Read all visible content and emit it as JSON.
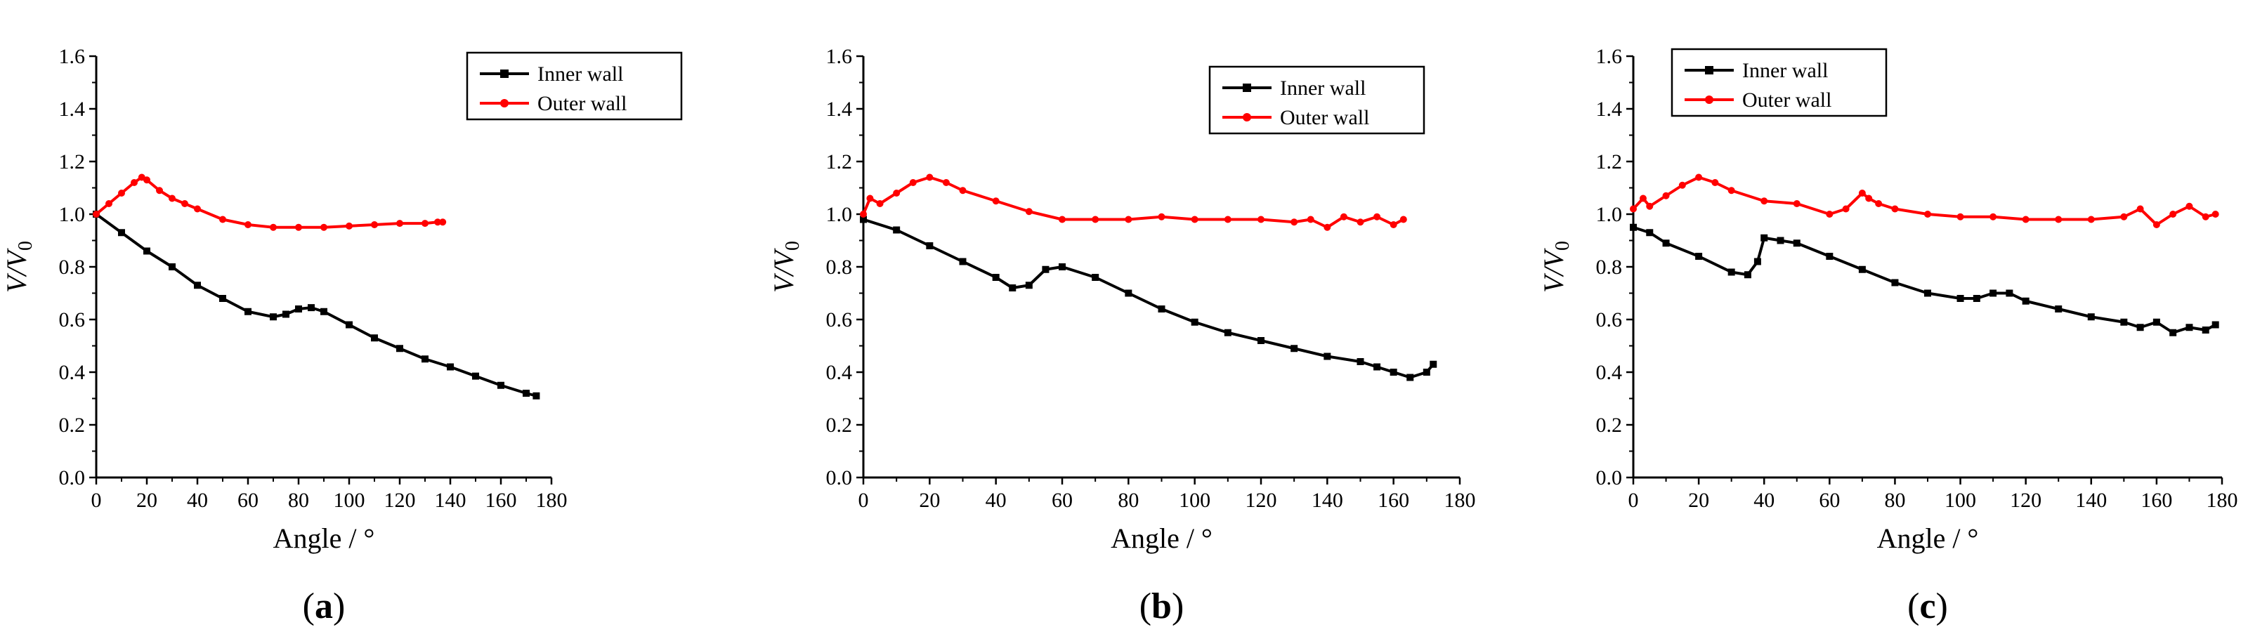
{
  "colors": {
    "inner": "#000000",
    "outer": "#ff0000",
    "axis": "#000000"
  },
  "chart_data": [
    {
      "type": "line",
      "caption": "a",
      "xlabel": "Angle / °",
      "ylabel": "V/V",
      "ylabel_sub": "0",
      "xlim": [
        0,
        180
      ],
      "ylim": [
        0.0,
        1.6
      ],
      "xticks": [
        "0",
        "20",
        "40",
        "60",
        "80",
        "100",
        "120",
        "140",
        "160",
        "180"
      ],
      "yticks": [
        "0.0",
        "0.2",
        "0.4",
        "0.6",
        "0.8",
        "1.0",
        "1.2",
        "1.4",
        "1.6"
      ],
      "legend_position": "top-right",
      "series": [
        {
          "name": "Inner wall",
          "x": [
            0,
            10,
            20,
            30,
            40,
            50,
            60,
            70,
            75,
            80,
            85,
            90,
            100,
            110,
            120,
            130,
            140,
            150,
            160,
            170,
            174
          ],
          "y": [
            1.0,
            0.93,
            0.86,
            0.8,
            0.73,
            0.68,
            0.63,
            0.61,
            0.62,
            0.64,
            0.645,
            0.63,
            0.58,
            0.53,
            0.49,
            0.45,
            0.42,
            0.385,
            0.35,
            0.32,
            0.31
          ]
        },
        {
          "name": "Outer wall",
          "x": [
            0,
            5,
            10,
            15,
            18,
            20,
            25,
            30,
            35,
            40,
            50,
            60,
            70,
            80,
            90,
            100,
            110,
            120,
            130,
            135,
            137
          ],
          "y": [
            1.0,
            1.04,
            1.08,
            1.12,
            1.14,
            1.13,
            1.09,
            1.06,
            1.04,
            1.02,
            0.98,
            0.96,
            0.95,
            0.95,
            0.95,
            0.955,
            0.96,
            0.965,
            0.965,
            0.97,
            0.97
          ]
        }
      ]
    },
    {
      "type": "line",
      "caption": "b",
      "xlabel": "Angle / °",
      "ylabel": "V/V",
      "ylabel_sub": "0",
      "xlim": [
        0,
        180
      ],
      "ylim": [
        0.0,
        1.6
      ],
      "xticks": [
        "0",
        "20",
        "40",
        "60",
        "80",
        "100",
        "120",
        "140",
        "160",
        "180"
      ],
      "yticks": [
        "0.0",
        "0.2",
        "0.4",
        "0.6",
        "0.8",
        "1.0",
        "1.2",
        "1.4",
        "1.6"
      ],
      "legend_position": "top-right",
      "series": [
        {
          "name": "Inner wall",
          "x": [
            0,
            10,
            20,
            30,
            40,
            45,
            50,
            55,
            60,
            70,
            80,
            90,
            100,
            110,
            120,
            130,
            140,
            150,
            155,
            160,
            165,
            170,
            172
          ],
          "y": [
            0.98,
            0.94,
            0.88,
            0.82,
            0.76,
            0.72,
            0.73,
            0.79,
            0.8,
            0.76,
            0.7,
            0.64,
            0.59,
            0.55,
            0.52,
            0.49,
            0.46,
            0.44,
            0.42,
            0.4,
            0.38,
            0.4,
            0.43
          ]
        },
        {
          "name": "Outer wall",
          "x": [
            0,
            2,
            5,
            10,
            15,
            20,
            25,
            30,
            40,
            50,
            60,
            70,
            80,
            90,
            100,
            110,
            120,
            130,
            135,
            140,
            145,
            150,
            155,
            160,
            163
          ],
          "y": [
            1.0,
            1.06,
            1.04,
            1.08,
            1.12,
            1.14,
            1.12,
            1.09,
            1.05,
            1.01,
            0.98,
            0.98,
            0.98,
            0.99,
            0.98,
            0.98,
            0.98,
            0.97,
            0.98,
            0.95,
            0.99,
            0.97,
            0.99,
            0.96,
            0.98
          ]
        }
      ]
    },
    {
      "type": "line",
      "caption": "c",
      "xlabel": "Angle / °",
      "ylabel": "V/V",
      "ylabel_sub": "0",
      "xlim": [
        0,
        180
      ],
      "ylim": [
        0.0,
        1.6
      ],
      "xticks": [
        "0",
        "20",
        "40",
        "60",
        "80",
        "100",
        "120",
        "140",
        "160",
        "180"
      ],
      "yticks": [
        "0.0",
        "0.2",
        "0.4",
        "0.6",
        "0.8",
        "1.0",
        "1.2",
        "1.4",
        "1.6"
      ],
      "legend_position": "top-left",
      "series": [
        {
          "name": "Inner wall",
          "x": [
            0,
            5,
            10,
            20,
            30,
            35,
            38,
            40,
            45,
            50,
            60,
            70,
            80,
            90,
            100,
            105,
            110,
            115,
            120,
            130,
            140,
            150,
            155,
            160,
            165,
            170,
            175,
            178
          ],
          "y": [
            0.95,
            0.93,
            0.89,
            0.84,
            0.78,
            0.77,
            0.82,
            0.91,
            0.9,
            0.89,
            0.84,
            0.79,
            0.74,
            0.7,
            0.68,
            0.68,
            0.7,
            0.7,
            0.67,
            0.64,
            0.61,
            0.59,
            0.57,
            0.59,
            0.55,
            0.57,
            0.56,
            0.58
          ]
        },
        {
          "name": "Outer wall",
          "x": [
            0,
            3,
            5,
            10,
            15,
            20,
            25,
            30,
            40,
            50,
            60,
            65,
            70,
            72,
            75,
            80,
            90,
            100,
            110,
            120,
            130,
            140,
            150,
            155,
            160,
            165,
            170,
            175,
            178
          ],
          "y": [
            1.02,
            1.06,
            1.03,
            1.07,
            1.11,
            1.14,
            1.12,
            1.09,
            1.05,
            1.04,
            1.0,
            1.02,
            1.08,
            1.06,
            1.04,
            1.02,
            1.0,
            0.99,
            0.99,
            0.98,
            0.98,
            0.98,
            0.99,
            1.02,
            0.96,
            1.0,
            1.03,
            0.99,
            1.0
          ]
        }
      ]
    }
  ]
}
